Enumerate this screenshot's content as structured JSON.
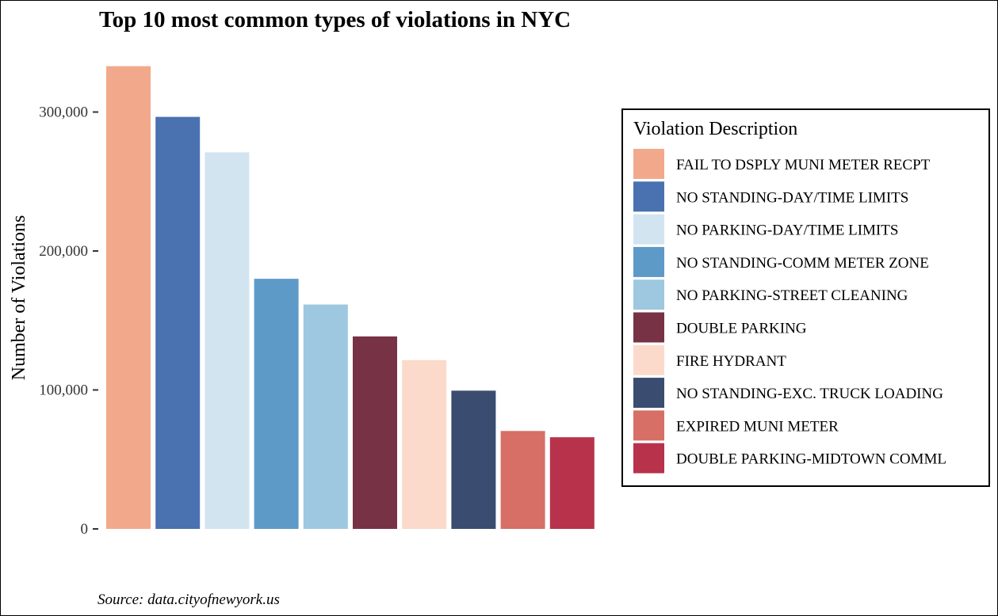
{
  "chart_data": {
    "type": "bar",
    "title": "Top 10 most common types of violations in NYC",
    "xlabel": "",
    "ylabel": "Number of Violations",
    "caption": "Source: data.cityofnewyork.us",
    "ylim": [
      0,
      335000
    ],
    "yticks": [
      0,
      100000,
      200000,
      300000
    ],
    "ytick_labels": [
      "0",
      "100,000",
      "200,000",
      "300,000"
    ],
    "grid": false,
    "legend": {
      "title": "Violation Description",
      "position": "right"
    },
    "categories": [
      "FAIL TO DSPLY MUNI METER RECPT",
      "NO STANDING-DAY/TIME LIMITS",
      "NO PARKING-DAY/TIME LIMITS",
      "NO STANDING-COMM METER ZONE",
      "NO PARKING-STREET CLEANING",
      "DOUBLE PARKING",
      "FIRE HYDRANT",
      "NO STANDING-EXC. TRUCK LOADING",
      "EXPIRED MUNI METER",
      "DOUBLE PARKING-MIDTOWN COMML"
    ],
    "values": [
      333000,
      296500,
      271000,
      180000,
      161500,
      138500,
      121500,
      99500,
      70500,
      66000
    ],
    "colors": [
      "#F2A98B",
      "#4A72B0",
      "#D3E4F1",
      "#5E9AC8",
      "#9EC7E0",
      "#783245",
      "#FBDACB",
      "#3A4D70",
      "#D76F66",
      "#B8324C"
    ]
  }
}
